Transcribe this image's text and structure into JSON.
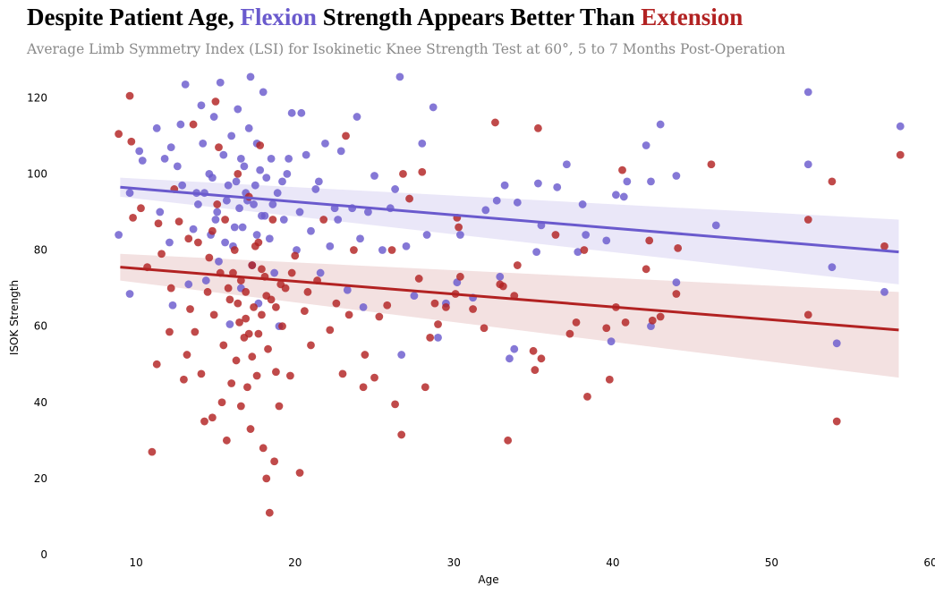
{
  "title": {
    "part1": "Despite Patient Age, ",
    "flexion": "Flexion",
    "part2": " Strength Appears Better Than ",
    "extension": "Extension"
  },
  "subtitle": "Average Limb Symmetry Index (LSI) for Isokinetic Knee Strength Test at 60°, 5 to 7 Months Post-Operation",
  "colors": {
    "flexion": "#6a5acd",
    "extension": "#b22222",
    "flexion_band": "#e6e3f7",
    "extension_band": "#f1dcdc"
  },
  "chart_data": {
    "type": "scatter",
    "xlabel": "Age",
    "ylabel": "ISOK Strength",
    "xlim": [
      6.5,
      60
    ],
    "ylim": [
      0,
      125
    ],
    "xticks": [
      10,
      20,
      30,
      40,
      50,
      60
    ],
    "yticks": [
      0,
      20,
      40,
      60,
      80,
      100,
      120
    ],
    "grid": false,
    "legend": "none",
    "series": [
      {
        "name": "Flexion",
        "color": "#6a5acd",
        "points": [
          [
            8.9,
            84
          ],
          [
            9.6,
            68.5
          ],
          [
            9.6,
            95
          ],
          [
            10.2,
            106
          ],
          [
            10.4,
            103.5
          ],
          [
            11.3,
            112
          ],
          [
            11.5,
            90
          ],
          [
            11.8,
            104
          ],
          [
            12.1,
            82
          ],
          [
            12.2,
            107
          ],
          [
            12.3,
            65.5
          ],
          [
            12.6,
            102
          ],
          [
            12.8,
            113
          ],
          [
            12.9,
            97
          ],
          [
            13.1,
            123.5
          ],
          [
            13.3,
            71
          ],
          [
            13.6,
            85.5
          ],
          [
            13.8,
            95
          ],
          [
            14.1,
            118
          ],
          [
            14.2,
            108
          ],
          [
            14.4,
            72
          ],
          [
            14.6,
            100
          ],
          [
            14.9,
            115
          ],
          [
            15.0,
            88
          ],
          [
            15.2,
            77
          ],
          [
            15.3,
            124
          ],
          [
            15.5,
            105
          ],
          [
            15.7,
            93
          ],
          [
            15.9,
            60.5
          ],
          [
            16.0,
            110
          ],
          [
            16.1,
            81
          ],
          [
            16.3,
            98
          ],
          [
            16.4,
            117
          ],
          [
            16.6,
            70
          ],
          [
            16.7,
            86
          ],
          [
            16.8,
            102
          ],
          [
            17.0,
            93
          ],
          [
            17.1,
            112
          ],
          [
            17.3,
            76
          ],
          [
            17.5,
            97
          ],
          [
            17.6,
            108
          ],
          [
            17.7,
            66
          ],
          [
            17.9,
            89
          ],
          [
            18.0,
            121.5
          ],
          [
            18.2,
            99
          ],
          [
            18.4,
            83
          ],
          [
            18.5,
            104
          ],
          [
            18.7,
            74
          ],
          [
            18.9,
            95
          ],
          [
            19.0,
            60
          ],
          [
            19.3,
            88
          ],
          [
            19.5,
            100
          ],
          [
            19.8,
            116
          ],
          [
            20.1,
            80
          ],
          [
            20.4,
            116
          ],
          [
            20.7,
            105
          ],
          [
            21.0,
            85
          ],
          [
            21.3,
            96
          ],
          [
            21.6,
            74
          ],
          [
            21.9,
            108
          ],
          [
            22.2,
            81
          ],
          [
            22.5,
            91
          ],
          [
            22.9,
            106
          ],
          [
            23.3,
            69.5
          ],
          [
            23.6,
            91
          ],
          [
            23.9,
            115
          ],
          [
            24.3,
            65
          ],
          [
            24.6,
            90
          ],
          [
            25.0,
            99.5
          ],
          [
            25.5,
            80
          ],
          [
            26.0,
            91
          ],
          [
            26.3,
            96
          ],
          [
            26.7,
            52.5
          ],
          [
            27.0,
            81
          ],
          [
            27.5,
            68
          ],
          [
            28.0,
            108
          ],
          [
            28.3,
            84
          ],
          [
            28.7,
            117.5
          ],
          [
            29.0,
            57
          ],
          [
            29.5,
            66
          ],
          [
            30.2,
            71.5
          ],
          [
            30.4,
            84
          ],
          [
            31.2,
            67.5
          ],
          [
            32.0,
            90.5
          ],
          [
            32.7,
            93
          ],
          [
            32.9,
            73
          ],
          [
            33.2,
            97
          ],
          [
            33.5,
            51.5
          ],
          [
            33.8,
            54
          ],
          [
            34.0,
            92.5
          ],
          [
            35.2,
            79.5
          ],
          [
            35.3,
            97.5
          ],
          [
            35.5,
            86.5
          ],
          [
            36.5,
            96.5
          ],
          [
            37.1,
            102.5
          ],
          [
            37.8,
            79.5
          ],
          [
            38.1,
            92
          ],
          [
            38.3,
            84
          ],
          [
            39.6,
            82.5
          ],
          [
            39.9,
            56
          ],
          [
            40.2,
            94.5
          ],
          [
            40.7,
            94
          ],
          [
            40.9,
            98
          ],
          [
            42.1,
            107.5
          ],
          [
            42.4,
            98
          ],
          [
            42.4,
            60
          ],
          [
            43.0,
            113
          ],
          [
            44.0,
            99.5
          ],
          [
            44.0,
            71.5
          ],
          [
            46.5,
            86.5
          ],
          [
            52.3,
            121.5
          ],
          [
            52.3,
            102.5
          ],
          [
            53.8,
            75.5
          ],
          [
            54.1,
            55.5
          ],
          [
            57.1,
            69
          ],
          [
            58.1,
            112.5
          ],
          [
            26.6,
            125.5
          ],
          [
            17.2,
            125.5
          ],
          [
            14.7,
            84
          ],
          [
            16.5,
            91
          ],
          [
            15.8,
            97
          ],
          [
            17.4,
            92
          ],
          [
            16.9,
            95
          ],
          [
            15.1,
            90
          ],
          [
            18.1,
            89
          ],
          [
            16.2,
            86
          ],
          [
            17.8,
            101
          ],
          [
            14.8,
            99
          ],
          [
            19.2,
            98
          ],
          [
            13.9,
            92
          ],
          [
            16.6,
            104
          ],
          [
            15.6,
            82
          ],
          [
            17.6,
            84
          ],
          [
            18.6,
            92
          ],
          [
            14.3,
            95
          ],
          [
            20.3,
            90
          ],
          [
            21.5,
            98
          ],
          [
            22.7,
            88
          ],
          [
            24.1,
            83
          ],
          [
            19.6,
            104
          ]
        ]
      },
      {
        "name": "Extension",
        "color": "#b22222",
        "points": [
          [
            8.9,
            110.5
          ],
          [
            9.6,
            120.5
          ],
          [
            9.7,
            108.5
          ],
          [
            9.8,
            88.5
          ],
          [
            10.3,
            91
          ],
          [
            10.7,
            75.5
          ],
          [
            11.0,
            27
          ],
          [
            11.3,
            50
          ],
          [
            11.4,
            87
          ],
          [
            11.6,
            79
          ],
          [
            12.1,
            58.5
          ],
          [
            12.2,
            70
          ],
          [
            12.4,
            96
          ],
          [
            12.7,
            87.5
          ],
          [
            13.0,
            46
          ],
          [
            13.2,
            52.5
          ],
          [
            13.4,
            64.5
          ],
          [
            13.6,
            113
          ],
          [
            13.7,
            58.5
          ],
          [
            13.9,
            82
          ],
          [
            14.1,
            47.5
          ],
          [
            14.3,
            35
          ],
          [
            14.5,
            69
          ],
          [
            14.6,
            78
          ],
          [
            14.8,
            36
          ],
          [
            14.9,
            63
          ],
          [
            15.0,
            119
          ],
          [
            15.2,
            107
          ],
          [
            15.4,
            40
          ],
          [
            15.5,
            55
          ],
          [
            15.6,
            88
          ],
          [
            15.7,
            30
          ],
          [
            15.9,
            67
          ],
          [
            16.0,
            45
          ],
          [
            16.1,
            74
          ],
          [
            16.3,
            51
          ],
          [
            16.4,
            100
          ],
          [
            16.5,
            61
          ],
          [
            16.6,
            39
          ],
          [
            16.8,
            57
          ],
          [
            16.9,
            69
          ],
          [
            17.0,
            44
          ],
          [
            17.1,
            94
          ],
          [
            17.2,
            33
          ],
          [
            17.3,
            52
          ],
          [
            17.4,
            65
          ],
          [
            17.5,
            81
          ],
          [
            17.6,
            47
          ],
          [
            17.7,
            58
          ],
          [
            17.8,
            107.5
          ],
          [
            17.9,
            63
          ],
          [
            18.0,
            28
          ],
          [
            18.1,
            73
          ],
          [
            18.2,
            20
          ],
          [
            18.3,
            54
          ],
          [
            18.4,
            11
          ],
          [
            18.5,
            67
          ],
          [
            18.6,
            88
          ],
          [
            18.7,
            24.5
          ],
          [
            18.8,
            48
          ],
          [
            19.0,
            39
          ],
          [
            19.2,
            60
          ],
          [
            19.4,
            70
          ],
          [
            19.7,
            47
          ],
          [
            20.0,
            78.5
          ],
          [
            20.3,
            21.5
          ],
          [
            20.6,
            64
          ],
          [
            21.0,
            55
          ],
          [
            21.4,
            72
          ],
          [
            21.8,
            88
          ],
          [
            22.2,
            59
          ],
          [
            22.6,
            66
          ],
          [
            23.0,
            47.5
          ],
          [
            23.2,
            110
          ],
          [
            23.4,
            63
          ],
          [
            23.7,
            80
          ],
          [
            24.3,
            44
          ],
          [
            24.4,
            52.5
          ],
          [
            25.0,
            46.5
          ],
          [
            25.3,
            62.5
          ],
          [
            25.8,
            65.5
          ],
          [
            26.1,
            80
          ],
          [
            26.3,
            39.5
          ],
          [
            26.7,
            31.5
          ],
          [
            26.8,
            100
          ],
          [
            27.2,
            93.5
          ],
          [
            27.8,
            72.5
          ],
          [
            28.0,
            100.5
          ],
          [
            28.2,
            44
          ],
          [
            28.5,
            57
          ],
          [
            28.8,
            66
          ],
          [
            29.0,
            60.5
          ],
          [
            29.5,
            65
          ],
          [
            30.1,
            68.5
          ],
          [
            30.2,
            88.5
          ],
          [
            30.4,
            73
          ],
          [
            30.3,
            86
          ],
          [
            31.2,
            64.5
          ],
          [
            31.9,
            59.5
          ],
          [
            32.6,
            113.5
          ],
          [
            32.9,
            71
          ],
          [
            33.1,
            70.5
          ],
          [
            33.4,
            30
          ],
          [
            33.8,
            68
          ],
          [
            34.0,
            76
          ],
          [
            35.0,
            53.5
          ],
          [
            35.1,
            48.5
          ],
          [
            35.3,
            112
          ],
          [
            35.5,
            51.5
          ],
          [
            36.4,
            84
          ],
          [
            37.3,
            58
          ],
          [
            37.7,
            61
          ],
          [
            38.2,
            80
          ],
          [
            38.4,
            41.5
          ],
          [
            39.6,
            59.5
          ],
          [
            39.8,
            46
          ],
          [
            40.2,
            65
          ],
          [
            40.6,
            101
          ],
          [
            40.8,
            61
          ],
          [
            42.1,
            75
          ],
          [
            42.3,
            82.5
          ],
          [
            42.5,
            61.5
          ],
          [
            43.0,
            62.5
          ],
          [
            44.0,
            68.5
          ],
          [
            44.1,
            80.5
          ],
          [
            46.2,
            102.5
          ],
          [
            52.3,
            88
          ],
          [
            52.3,
            63
          ],
          [
            53.8,
            98
          ],
          [
            54.1,
            35
          ],
          [
            57.1,
            81
          ],
          [
            58.1,
            105
          ],
          [
            16.6,
            72
          ],
          [
            17.3,
            76
          ],
          [
            15.8,
            70
          ],
          [
            18.2,
            68
          ],
          [
            16.9,
            62
          ],
          [
            17.7,
            82
          ],
          [
            15.3,
            74
          ],
          [
            19.1,
            71
          ],
          [
            16.2,
            80
          ],
          [
            17.9,
            75
          ],
          [
            14.8,
            85
          ],
          [
            18.8,
            65
          ],
          [
            16.4,
            66
          ],
          [
            15.1,
            92
          ],
          [
            17.1,
            58
          ],
          [
            19.8,
            74
          ],
          [
            13.3,
            83
          ],
          [
            20.8,
            69
          ]
        ]
      }
    ],
    "trendlines": [
      {
        "name": "Flexion",
        "x": [
          9,
          58
        ],
        "y": [
          96.5,
          79.5
        ],
        "ci_lower": [
          94.0,
          71.0
        ],
        "ci_upper": [
          99.0,
          88.0
        ]
      },
      {
        "name": "Extension",
        "x": [
          9,
          58
        ],
        "y": [
          75.5,
          59
        ],
        "ci_lower": [
          72.0,
          46.5
        ],
        "ci_upper": [
          79.0,
          69.0
        ]
      }
    ]
  }
}
